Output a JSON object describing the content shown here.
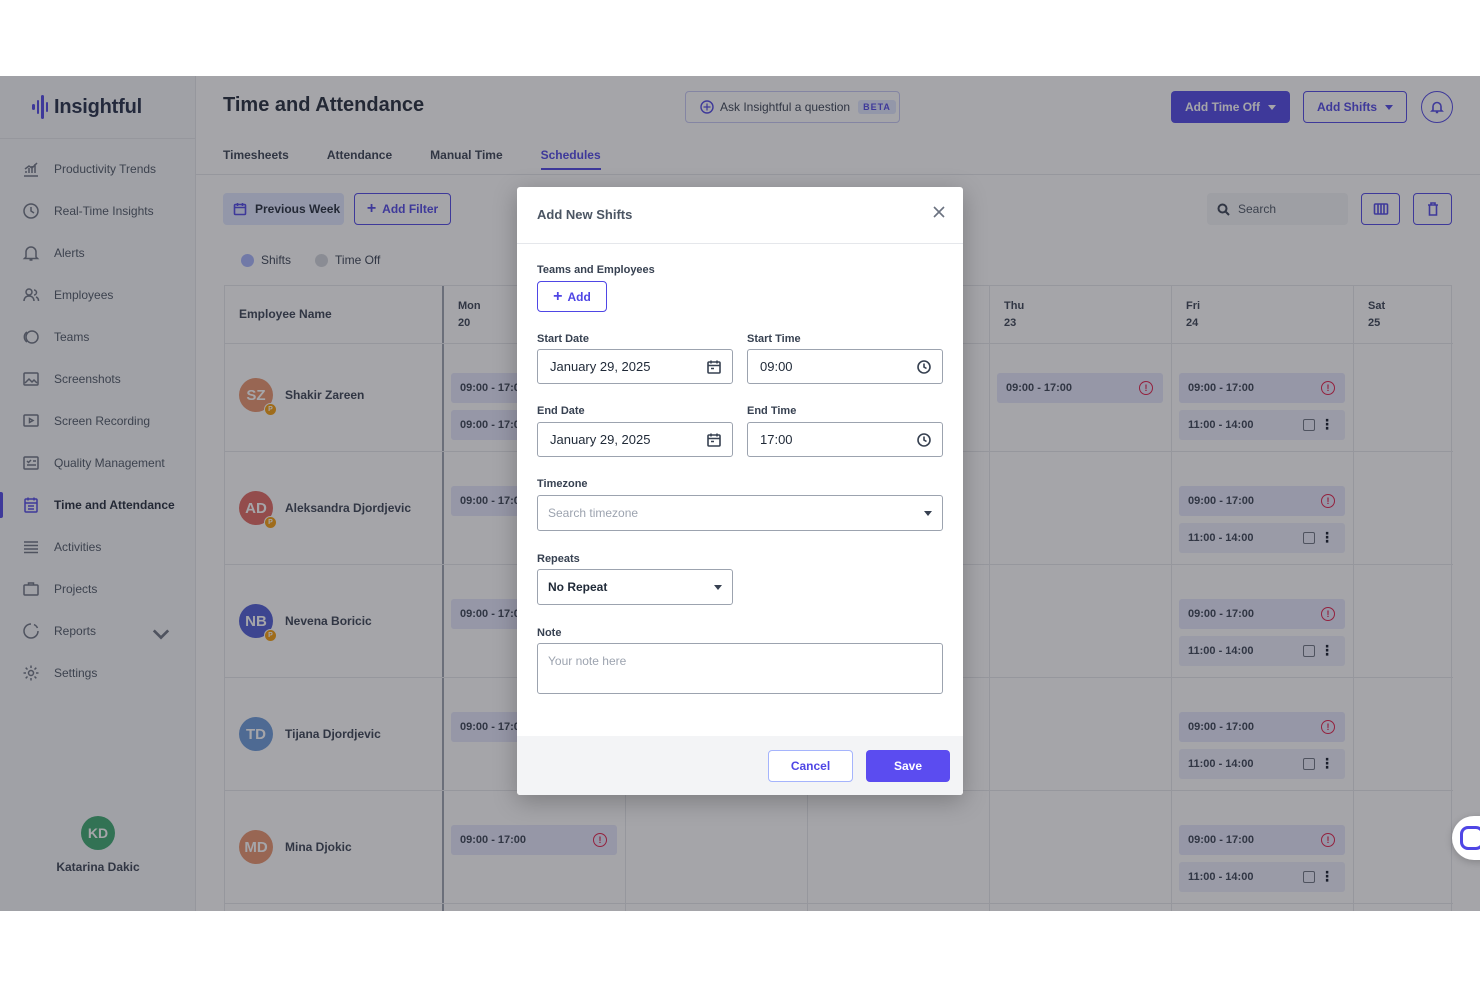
{
  "app": {
    "logo_text": "Insightful"
  },
  "sidebar": {
    "items": [
      {
        "label": "Productivity Trends",
        "icon": "chart-icon"
      },
      {
        "label": "Real-Time Insights",
        "icon": "clock-icon"
      },
      {
        "label": "Alerts",
        "icon": "bell-icon"
      },
      {
        "label": "Employees",
        "icon": "users-icon"
      },
      {
        "label": "Teams",
        "icon": "teams-icon"
      },
      {
        "label": "Screenshots",
        "icon": "image-icon"
      },
      {
        "label": "Screen Recording",
        "icon": "play-icon"
      },
      {
        "label": "Quality Management",
        "icon": "checklist-icon"
      },
      {
        "label": "Time and Attendance",
        "icon": "calendar-icon",
        "active": true
      },
      {
        "label": "Activities",
        "icon": "list-icon"
      },
      {
        "label": "Projects",
        "icon": "briefcase-icon"
      },
      {
        "label": "Reports",
        "icon": "pie-icon"
      },
      {
        "label": "Settings",
        "icon": "gear-icon"
      }
    ],
    "user": {
      "initials": "KD",
      "name": "Katarina Dakic"
    }
  },
  "header": {
    "title": "Time and Attendance",
    "ask_label": "Ask Insightful a question",
    "beta_label": "BETA",
    "add_time_off_label": "Add Time Off",
    "add_shifts_label": "Add Shifts"
  },
  "tabs": [
    {
      "label": "Timesheets"
    },
    {
      "label": "Attendance"
    },
    {
      "label": "Manual Time"
    },
    {
      "label": "Schedules",
      "active": true
    }
  ],
  "toolbar": {
    "previous_week_label": "Previous Week",
    "add_filter_label": "Add Filter",
    "search_placeholder": "Search"
  },
  "legend": {
    "shifts_label": "Shifts",
    "time_off_label": "Time Off",
    "shifts_color": "#a5b4fc",
    "time_off_color": "#d1d5db"
  },
  "grid": {
    "employee_header": "Employee Name",
    "days": [
      {
        "day": "Mon",
        "date": "20"
      },
      {
        "day": "Thu",
        "date": "23"
      },
      {
        "day": "Fri",
        "date": "24"
      },
      {
        "day": "Sat",
        "date": "25"
      }
    ],
    "employees": [
      {
        "initials": "SZ",
        "name": "Shakir Zareen",
        "color": "#e8936b",
        "badge": "P"
      },
      {
        "initials": "AD",
        "name": "Aleksandra Djordjevic",
        "color": "#e0675f",
        "badge": "P"
      },
      {
        "initials": "NB",
        "name": "Nevena Boricic",
        "color": "#4c5bd4",
        "badge": "P"
      },
      {
        "initials": "TD",
        "name": "Tijana Djordjevic",
        "color": "#6a9ad9",
        "badge": ""
      },
      {
        "initials": "MD",
        "name": "Mina Djokic",
        "color": "#e8936b",
        "badge": ""
      }
    ],
    "shift_full": "09:00 - 17:00",
    "shift_truncated": "09:00 - 17:0",
    "shift_short": "11:00 - 14:00",
    "warn_glyph": "!",
    "kebab_glyph": "⋮"
  },
  "modal": {
    "title": "Add New Shifts",
    "teams_label": "Teams and Employees",
    "add_label": "Add",
    "start_date_label": "Start Date",
    "start_date_value": "January 29, 2025",
    "start_time_label": "Start Time",
    "start_time_value": "09:00",
    "end_date_label": "End Date",
    "end_date_value": "January 29, 2025",
    "end_time_label": "End Time",
    "end_time_value": "17:00",
    "timezone_label": "Timezone",
    "timezone_placeholder": "Search timezone",
    "repeats_label": "Repeats",
    "repeats_value": "No Repeat",
    "note_label": "Note",
    "note_placeholder": "Your note here",
    "cancel_label": "Cancel",
    "save_label": "Save"
  }
}
